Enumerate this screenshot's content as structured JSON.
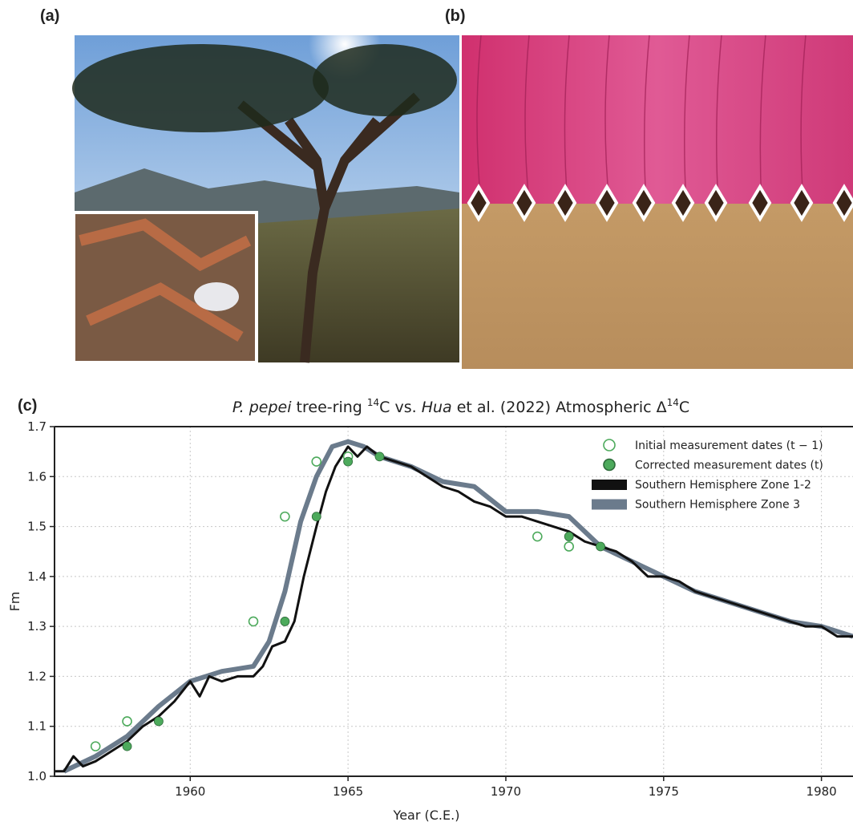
{
  "panels": {
    "a": "(a)",
    "b": "(b)",
    "c": "(c)"
  },
  "chart_data": {
    "type": "line",
    "title": [
      "P. pepei",
      " tree-ring ",
      "14",
      "C vs. ",
      "Hua",
      " et al. (2022) Atmospheric Δ",
      "14",
      "C"
    ],
    "xlabel": "Year (C.E.)",
    "ylabel": "Fm",
    "xlim": [
      1955.7,
      1981
    ],
    "ylim": [
      1.0,
      1.7
    ],
    "xticks": [
      1960,
      1965,
      1970,
      1975,
      1980
    ],
    "yticks": [
      {
        "value": 1,
        "label": "1.0"
      },
      1.1,
      1.2,
      1.3,
      1.4,
      1.5,
      1.6,
      1.7
    ],
    "grid": true,
    "legend": "upper right",
    "series": [
      {
        "name": "Initial measurement dates (t − 1)",
        "type": "scatter-open",
        "color": "#4daa5c",
        "x": [
          1957,
          1958,
          1962,
          1963,
          1964,
          1965,
          1971,
          1972
        ],
        "values": [
          1.06,
          1.11,
          1.31,
          1.52,
          1.63,
          1.64,
          1.48,
          1.46
        ]
      },
      {
        "name": "Corrected measurement dates (t)",
        "type": "scatter",
        "color": "#4daa5c",
        "x": [
          1958,
          1959,
          1963,
          1964,
          1965,
          1966,
          1972,
          1973
        ],
        "values": [
          1.06,
          1.11,
          1.31,
          1.52,
          1.63,
          1.64,
          1.48,
          1.46
        ]
      },
      {
        "name": "Southern Hemisphere Zone 1-2",
        "type": "line",
        "color": "#111111",
        "x": [
          1955.7,
          1956,
          1956.3,
          1956.6,
          1957,
          1957.5,
          1958,
          1958.5,
          1959,
          1959.5,
          1960,
          1960.3,
          1960.6,
          1961,
          1961.5,
          1962,
          1962.3,
          1962.6,
          1963,
          1963.3,
          1963.6,
          1964,
          1964.3,
          1964.6,
          1965,
          1965.3,
          1965.6,
          1966,
          1966.5,
          1967,
          1967.5,
          1968,
          1968.5,
          1969,
          1969.5,
          1970,
          1970.5,
          1971,
          1971.5,
          1972,
          1972.5,
          1973,
          1973.5,
          1974,
          1974.5,
          1975,
          1975.5,
          1976,
          1976.5,
          1977,
          1977.5,
          1978,
          1978.5,
          1979,
          1979.5,
          1980,
          1980.5,
          1981
        ],
        "values": [
          1.01,
          1.01,
          1.04,
          1.02,
          1.03,
          1.05,
          1.07,
          1.1,
          1.12,
          1.15,
          1.19,
          1.16,
          1.2,
          1.19,
          1.2,
          1.2,
          1.22,
          1.26,
          1.27,
          1.31,
          1.4,
          1.5,
          1.57,
          1.62,
          1.66,
          1.64,
          1.66,
          1.64,
          1.63,
          1.62,
          1.6,
          1.58,
          1.57,
          1.55,
          1.54,
          1.52,
          1.52,
          1.51,
          1.5,
          1.49,
          1.47,
          1.46,
          1.45,
          1.43,
          1.4,
          1.4,
          1.39,
          1.37,
          1.36,
          1.35,
          1.34,
          1.33,
          1.32,
          1.31,
          1.3,
          1.3,
          1.28,
          1.28
        ]
      },
      {
        "name": "Southern Hemisphere Zone 3",
        "type": "line",
        "color": "#6b7b8c",
        "x": [
          1956,
          1957,
          1958,
          1959,
          1960,
          1961,
          1962,
          1962.5,
          1963,
          1963.5,
          1964,
          1964.5,
          1965,
          1965.5,
          1966,
          1967,
          1968,
          1969,
          1970,
          1971,
          1972,
          1972.5,
          1973,
          1974,
          1975,
          1976,
          1977,
          1978,
          1979,
          1980,
          1981
        ],
        "values": [
          1.01,
          1.04,
          1.08,
          1.14,
          1.19,
          1.21,
          1.22,
          1.27,
          1.37,
          1.51,
          1.6,
          1.66,
          1.67,
          1.66,
          1.64,
          1.62,
          1.59,
          1.58,
          1.53,
          1.53,
          1.52,
          1.49,
          1.46,
          1.43,
          1.4,
          1.37,
          1.35,
          1.33,
          1.31,
          1.3,
          1.28
        ]
      }
    ]
  }
}
